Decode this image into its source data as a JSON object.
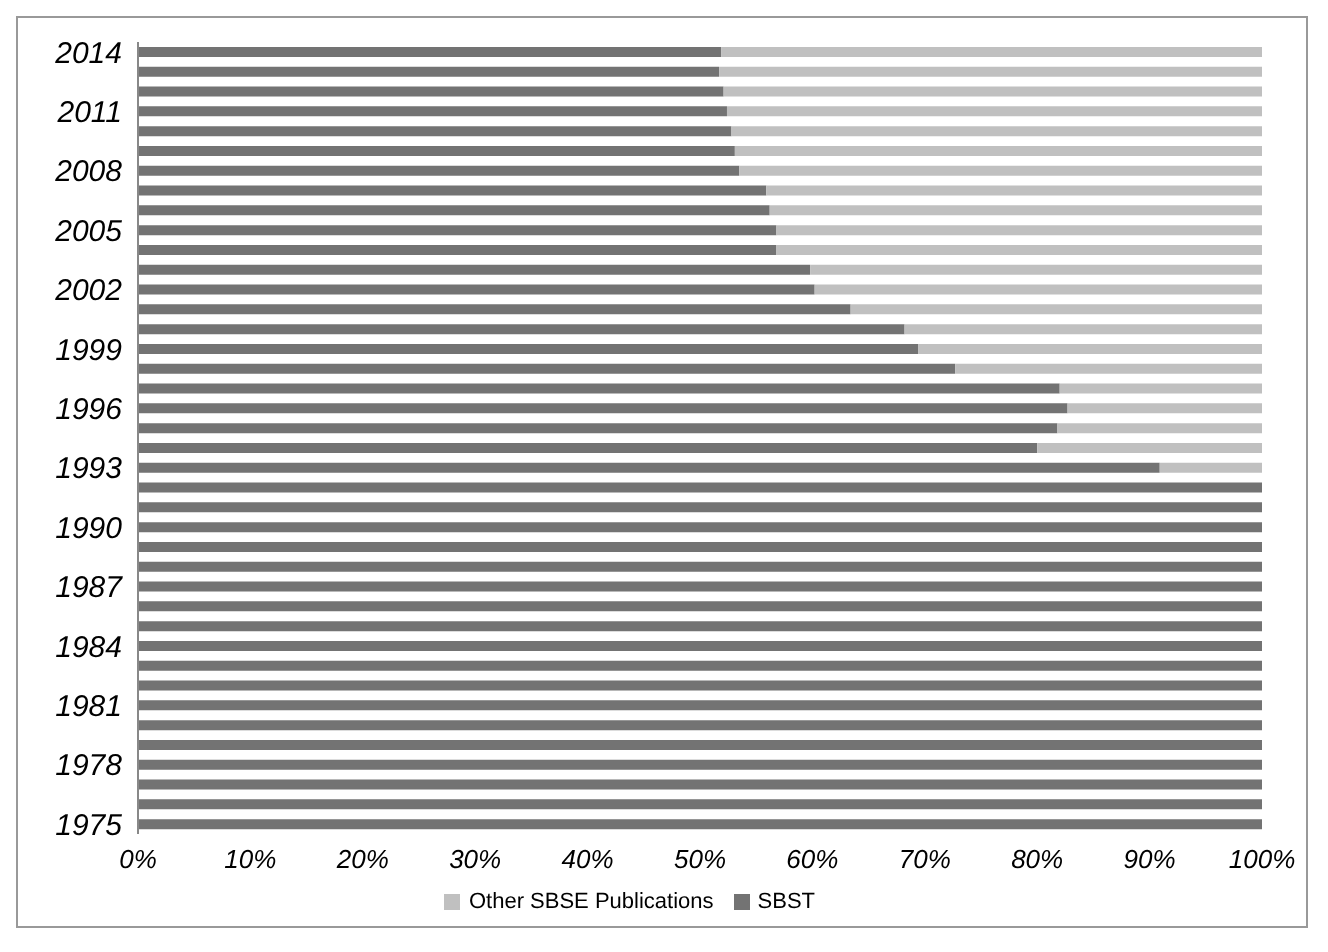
{
  "chart_data": {
    "type": "bar",
    "orientation": "horizontal",
    "stacked": true,
    "categories": [
      "2014",
      null,
      null,
      "2011",
      null,
      null,
      "2008",
      null,
      null,
      "2005",
      null,
      null,
      "2002",
      null,
      null,
      "1999",
      null,
      null,
      "1996",
      null,
      null,
      "1993",
      null,
      null,
      "1990",
      null,
      null,
      "1987",
      null,
      null,
      "1984",
      null,
      null,
      "1981",
      null,
      null,
      "1978",
      null,
      null,
      "1975"
    ],
    "series": [
      {
        "name": "SBST",
        "color": "#737373",
        "values": [
          51.9,
          51.7,
          52.1,
          52.4,
          52.8,
          53.1,
          53.5,
          55.9,
          56.2,
          56.8,
          56.8,
          59.8,
          60.2,
          63.4,
          68.2,
          69.4,
          72.7,
          82.0,
          82.7,
          81.8,
          80.0,
          90.9,
          100,
          100,
          100,
          100,
          100,
          100,
          100,
          100,
          100,
          100,
          100,
          100,
          100,
          100,
          100,
          100,
          100,
          100
        ]
      },
      {
        "name": "Other SBSE Publications",
        "color": "#c0c0c0",
        "values": [
          48.1,
          48.3,
          47.9,
          47.6,
          47.2,
          46.9,
          46.5,
          44.1,
          43.8,
          43.2,
          43.2,
          40.2,
          39.8,
          36.6,
          31.8,
          30.6,
          27.3,
          18.0,
          17.3,
          18.2,
          20.0,
          9.1,
          0,
          0,
          0,
          0,
          0,
          0,
          0,
          0,
          0,
          0,
          0,
          0,
          0,
          0,
          0,
          0,
          0,
          0
        ]
      }
    ],
    "xlim": [
      0,
      100
    ],
    "xticks": [
      {
        "value": 0,
        "label": "0%"
      },
      {
        "value": 10,
        "label": "10%"
      },
      {
        "value": 20,
        "label": "20%"
      },
      {
        "value": 30,
        "label": "30%"
      },
      {
        "value": 40,
        "label": "40%"
      },
      {
        "value": 50,
        "label": "50%"
      },
      {
        "value": 60,
        "label": "60%"
      },
      {
        "value": 70,
        "label": "70%"
      },
      {
        "value": 80,
        "label": "80%"
      },
      {
        "value": 90,
        "label": "90%"
      },
      {
        "value": 100,
        "label": "100%"
      }
    ],
    "legend": "bottom"
  }
}
